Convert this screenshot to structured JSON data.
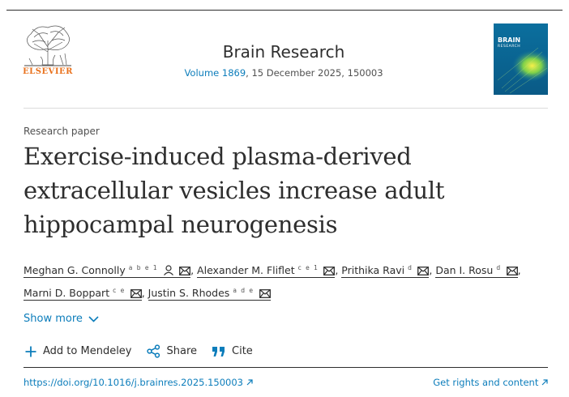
{
  "header": {
    "publisher": "ELSEVIER",
    "journal_title": "Brain Research",
    "volume_link": "Volume 1869",
    "issue_info": ", 15 December 2025, 150003",
    "cover_title": "BRAIN",
    "cover_subtitle": "RESEARCH"
  },
  "article": {
    "type": "Research paper",
    "title": "Exercise-induced plasma-derived extracellular vesicles increase adult hippocampal neurogenesis"
  },
  "authors": [
    {
      "name": "Meghan G. Connolly",
      "affil": "a b e 1"
    },
    {
      "name": "Alexander M. Fliflet",
      "affil": "c e 1"
    },
    {
      "name": "Prithika Ravi",
      "affil": "d"
    },
    {
      "name": "Dan I. Rosu",
      "affil": "d"
    },
    {
      "name": "Marni D. Boppart",
      "affil": "c e"
    },
    {
      "name": "Justin S. Rhodes",
      "affil": "a d e"
    }
  ],
  "controls": {
    "show_more": "Show more",
    "add_mendeley": "Add to Mendeley",
    "share": "Share",
    "cite": "Cite"
  },
  "footer": {
    "doi": "https://doi.org/10.1016/j.brainres.2025.150003",
    "rights": "Get rights and content"
  },
  "colors": {
    "link": "#0c7dbb",
    "brand": "#e9711c",
    "text": "#2e2e2e"
  },
  "icons": [
    "elsevier-tree-logo",
    "person-icon",
    "envelope-icon",
    "chevron-down-icon",
    "plus-icon",
    "share-icon",
    "quote-icon",
    "external-arrow-icon"
  ]
}
